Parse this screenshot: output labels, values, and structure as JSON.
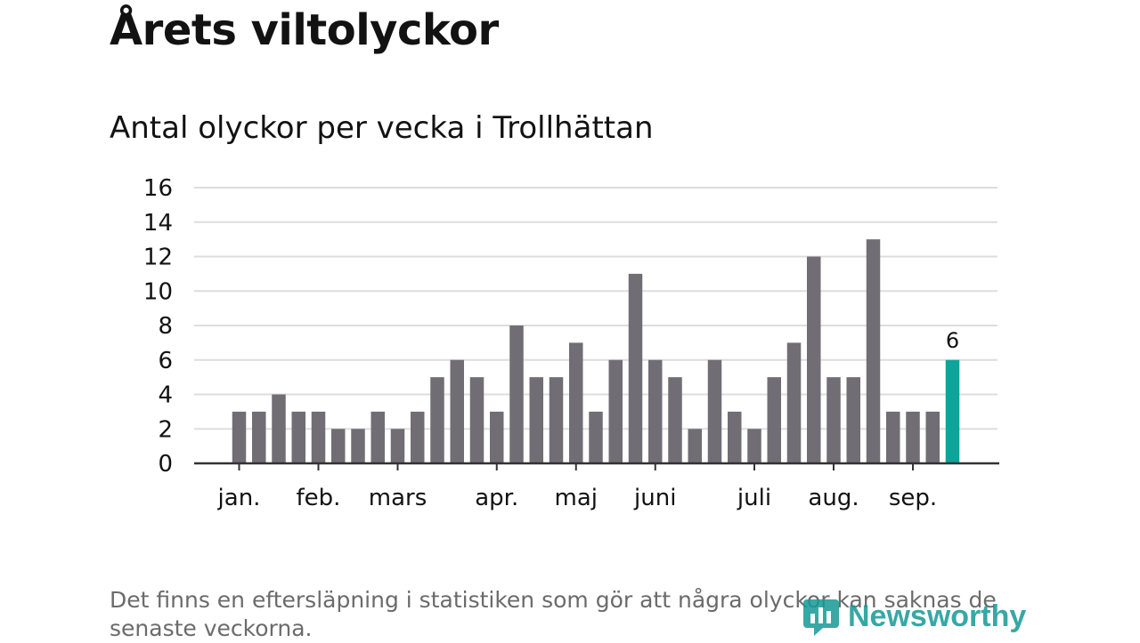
{
  "title": "Årets viltolyckor",
  "subtitle": "Antal olyckor per vecka i Trollhättan",
  "footnote": "Det finns en eftersläpning i statistiken som gör att några olyckor kan saknas de senaste veckorna.",
  "logo": {
    "text": "Newsworthy",
    "icon": "bar-chart-icon",
    "color": "#159a96"
  },
  "colors": {
    "bar": "#706e74",
    "highlight": "#0da49a",
    "grid": "#dddddd",
    "axis": "#333333"
  },
  "chart_data": {
    "type": "bar",
    "title": "Årets viltolyckor",
    "subtitle": "Antal olyckor per vecka i Trollhättan",
    "xlabel": "",
    "ylabel": "",
    "ylim": [
      0,
      16
    ],
    "yticks": [
      0,
      2,
      4,
      6,
      8,
      10,
      12,
      14,
      16
    ],
    "grid": true,
    "month_labels": [
      "jan.",
      "feb.",
      "mars",
      "apr.",
      "maj",
      "juni",
      "juli",
      "aug.",
      "sep."
    ],
    "month_tick_weeks": [
      1,
      5,
      9,
      14,
      18,
      22,
      27,
      31,
      35
    ],
    "weeks": [
      1,
      2,
      3,
      4,
      5,
      6,
      7,
      8,
      9,
      10,
      11,
      12,
      13,
      14,
      15,
      16,
      17,
      18,
      19,
      20,
      21,
      22,
      23,
      24,
      25,
      26,
      27,
      28,
      29,
      30,
      31,
      32,
      33,
      34,
      35,
      36,
      37
    ],
    "values": [
      3,
      3,
      4,
      3,
      3,
      2,
      2,
      3,
      2,
      3,
      5,
      6,
      5,
      3,
      8,
      5,
      5,
      7,
      3,
      6,
      11,
      6,
      5,
      2,
      6,
      3,
      2,
      5,
      7,
      12,
      5,
      5,
      13,
      3,
      3,
      3,
      6
    ],
    "highlight_index": 36,
    "highlight_label": "6"
  }
}
